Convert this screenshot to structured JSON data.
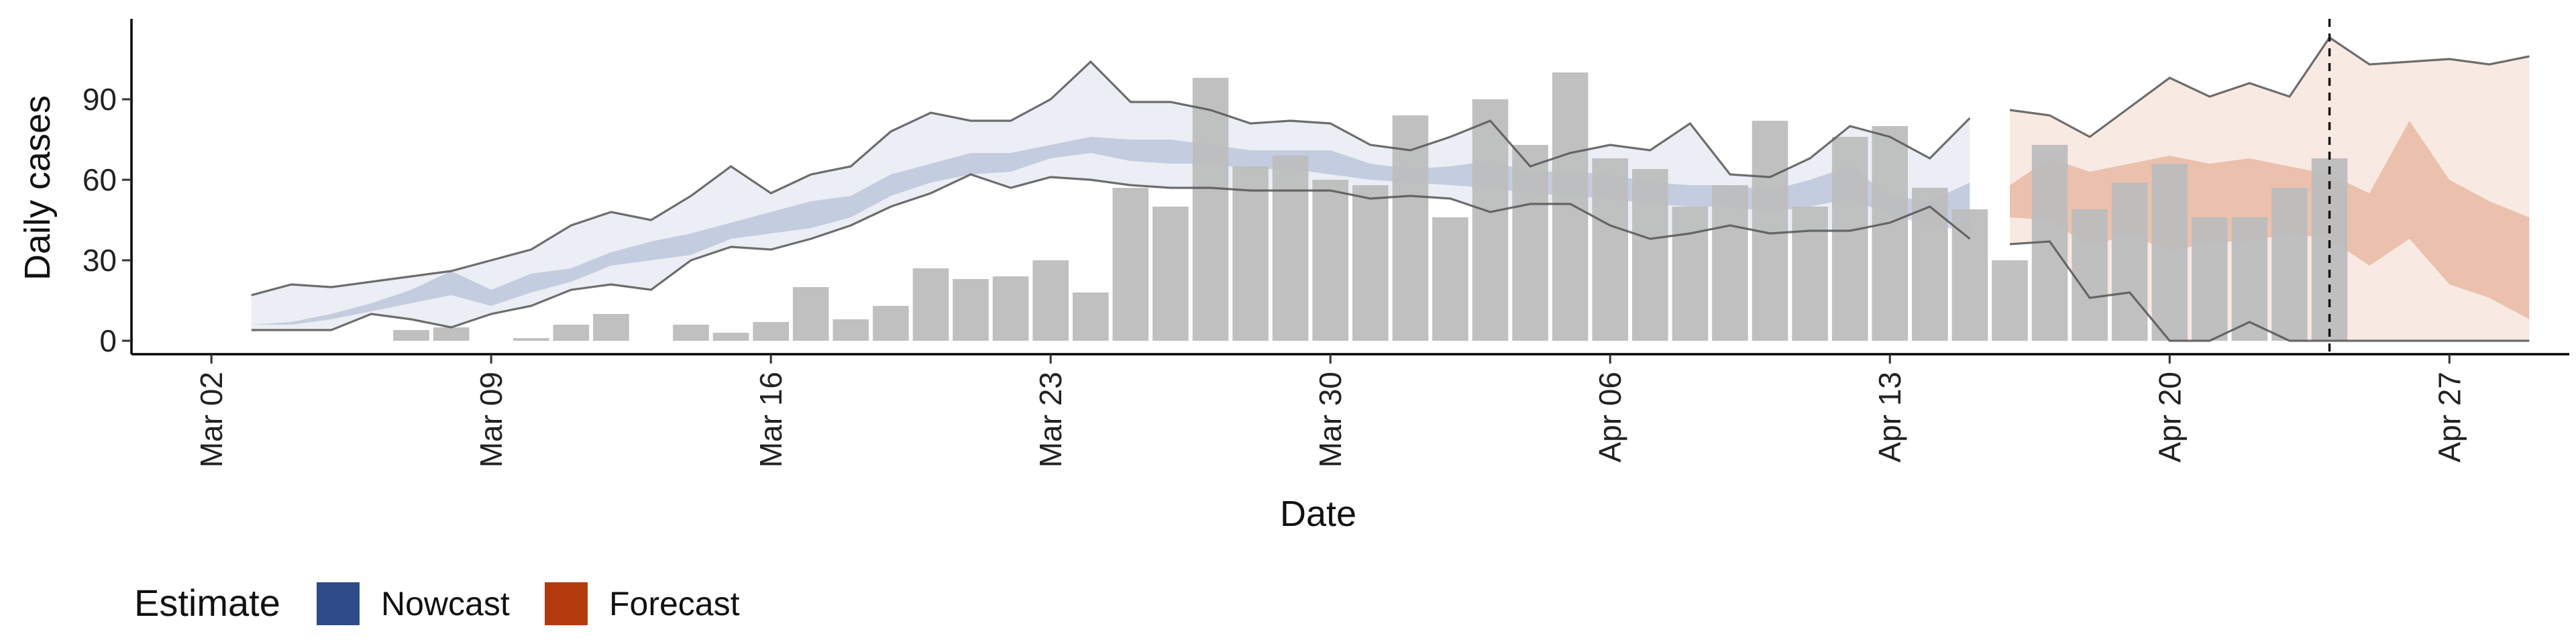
{
  "chart_data": {
    "type": "bar",
    "xlabel": "Date",
    "ylabel": "Daily cases",
    "ylim": [
      -5,
      120
    ],
    "yticks": [
      0,
      30,
      60,
      90
    ],
    "x_tick_labels": [
      {
        "date": "2020-03-02",
        "label": "Mar 02"
      },
      {
        "date": "2020-03-09",
        "label": "Mar 09"
      },
      {
        "date": "2020-03-16",
        "label": "Mar 16"
      },
      {
        "date": "2020-03-23",
        "label": "Mar 23"
      },
      {
        "date": "2020-03-30",
        "label": "Mar 30"
      },
      {
        "date": "2020-04-06",
        "label": "Apr 06"
      },
      {
        "date": "2020-04-13",
        "label": "Apr 13"
      },
      {
        "date": "2020-04-20",
        "label": "Apr 20"
      },
      {
        "date": "2020-04-27",
        "label": "Apr 27"
      }
    ],
    "xlim": [
      "2020-02-29",
      "2020-04-30"
    ],
    "grid": false,
    "legend": {
      "title": "Estimate",
      "placement": "bottom-left",
      "entries": [
        {
          "label": "Nowcast",
          "color": "#2f4b8a"
        },
        {
          "label": "Forecast",
          "color": "#b23a0c"
        }
      ]
    },
    "forecast_start_date": "2020-04-24",
    "colors": {
      "bars": "#bdbdbd",
      "nowcast": "#3a5795",
      "forecast": "#d06b3a",
      "limit_lines": "#555555"
    },
    "reported_cases": {
      "dates": [
        "2020-03-07",
        "2020-03-08",
        "2020-03-09",
        "2020-03-10",
        "2020-03-11",
        "2020-03-12",
        "2020-03-13",
        "2020-03-14",
        "2020-03-15",
        "2020-03-16",
        "2020-03-17",
        "2020-03-18",
        "2020-03-19",
        "2020-03-20",
        "2020-03-21",
        "2020-03-22",
        "2020-03-23",
        "2020-03-24",
        "2020-03-25",
        "2020-03-26",
        "2020-03-27",
        "2020-03-28",
        "2020-03-29",
        "2020-03-30",
        "2020-03-31",
        "2020-04-01",
        "2020-04-02",
        "2020-04-03",
        "2020-04-04",
        "2020-04-05",
        "2020-04-06",
        "2020-04-07",
        "2020-04-08",
        "2020-04-09",
        "2020-04-10",
        "2020-04-11",
        "2020-04-12",
        "2020-04-13",
        "2020-04-14",
        "2020-04-15",
        "2020-04-16",
        "2020-04-17",
        "2020-04-18",
        "2020-04-19",
        "2020-04-20",
        "2020-04-21",
        "2020-04-22",
        "2020-04-23",
        "2020-04-24"
      ],
      "values": [
        4,
        5,
        0,
        1,
        6,
        10,
        0,
        6,
        3,
        7,
        20,
        8,
        13,
        27,
        23,
        24,
        30,
        18,
        57,
        50,
        98,
        65,
        69,
        60,
        58,
        84,
        46,
        90,
        73,
        100,
        68,
        64,
        50,
        58,
        82,
        50,
        76,
        80,
        57,
        49,
        30,
        73,
        49,
        59,
        66,
        46,
        46,
        57,
        68
      ]
    },
    "nowcast": {
      "dates": [
        "2020-03-03",
        "2020-03-04",
        "2020-03-05",
        "2020-03-06",
        "2020-03-07",
        "2020-03-08",
        "2020-03-09",
        "2020-03-10",
        "2020-03-11",
        "2020-03-12",
        "2020-03-13",
        "2020-03-14",
        "2020-03-15",
        "2020-03-16",
        "2020-03-17",
        "2020-03-18",
        "2020-03-19",
        "2020-03-20",
        "2020-03-21",
        "2020-03-22",
        "2020-03-23",
        "2020-03-24",
        "2020-03-25",
        "2020-03-26",
        "2020-03-27",
        "2020-03-28",
        "2020-03-29",
        "2020-03-30",
        "2020-03-31",
        "2020-04-01",
        "2020-04-02",
        "2020-04-03",
        "2020-04-04",
        "2020-04-05",
        "2020-04-06",
        "2020-04-07",
        "2020-04-08",
        "2020-04-09",
        "2020-04-10",
        "2020-04-11",
        "2020-04-12",
        "2020-04-13",
        "2020-04-14",
        "2020-04-15"
      ],
      "lower_90": [
        4,
        4,
        4,
        10,
        8,
        5,
        10,
        13,
        19,
        21,
        19,
        30,
        35,
        34,
        38,
        43,
        50,
        55,
        62,
        57,
        61,
        60,
        58,
        57,
        57,
        56,
        56,
        56,
        53,
        54,
        53,
        48,
        51,
        51,
        43,
        38,
        40,
        43,
        40,
        41,
        41,
        44,
        50,
        38
      ],
      "upper_90": [
        17,
        21,
        20,
        22,
        24,
        26,
        30,
        34,
        43,
        48,
        45,
        54,
        65,
        55,
        62,
        65,
        78,
        85,
        82,
        82,
        90,
        104,
        89,
        89,
        86,
        81,
        82,
        81,
        73,
        71,
        76,
        82,
        65,
        70,
        73,
        71,
        81,
        62,
        61,
        68,
        80,
        76,
        68,
        83
      ],
      "lower_50": [
        6,
        6,
        8,
        11,
        14,
        17,
        13,
        18,
        22,
        28,
        30,
        32,
        38,
        40,
        42,
        46,
        54,
        59,
        62,
        63,
        68,
        70,
        67,
        66,
        66,
        64,
        64,
        62,
        60,
        59,
        58,
        57,
        55,
        54,
        53,
        51,
        50,
        50,
        48,
        50,
        53,
        47,
        43,
        41
      ],
      "upper_50": [
        6,
        7,
        10,
        14,
        19,
        26,
        19,
        25,
        27,
        33,
        37,
        40,
        44,
        48,
        52,
        54,
        62,
        66,
        70,
        70,
        73,
        76,
        75,
        75,
        73,
        71,
        71,
        71,
        66,
        64,
        65,
        67,
        63,
        63,
        62,
        59,
        58,
        58,
        56,
        60,
        65,
        54,
        52,
        59
      ]
    },
    "forecast": {
      "dates": [
        "2020-04-16",
        "2020-04-17",
        "2020-04-18",
        "2020-04-19",
        "2020-04-20",
        "2020-04-21",
        "2020-04-22",
        "2020-04-23",
        "2020-04-24",
        "2020-04-25",
        "2020-04-26",
        "2020-04-27",
        "2020-04-28",
        "2020-04-29"
      ],
      "lower_90": [
        36,
        37,
        16,
        18,
        0,
        0,
        7,
        0,
        0,
        0,
        0,
        0,
        0,
        0
      ],
      "upper_90": [
        86,
        84,
        76,
        87,
        98,
        91,
        96,
        91,
        113,
        103,
        104,
        105,
        103,
        106
      ],
      "lower_50": [
        46,
        45,
        35,
        40,
        33,
        37,
        37,
        40,
        38,
        28,
        38,
        21,
        16,
        8
      ],
      "upper_50": [
        58,
        68,
        63,
        66,
        69,
        66,
        68,
        65,
        62,
        55,
        82,
        60,
        52,
        46
      ]
    }
  }
}
